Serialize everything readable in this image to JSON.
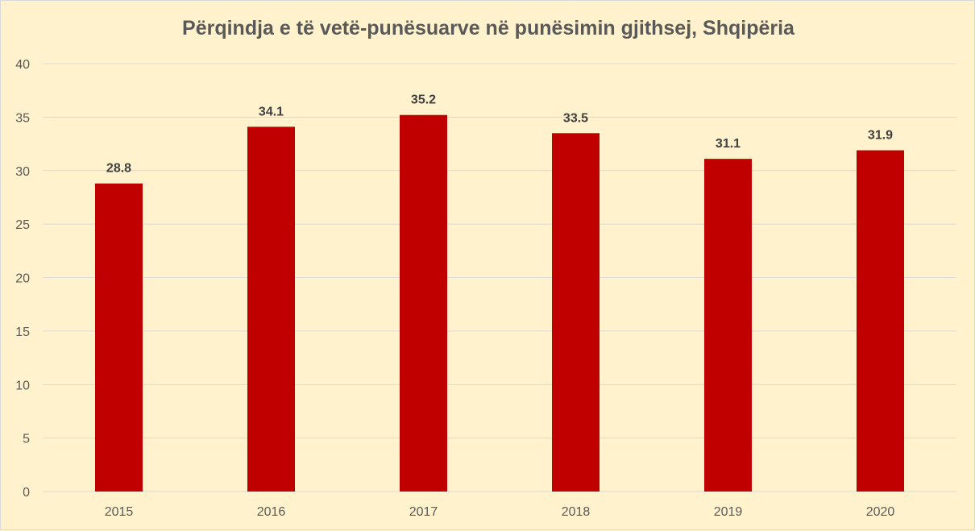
{
  "chart_data": {
    "type": "bar",
    "title": "Përqindja e të vetë-punësuarve në punësimin gjithsej, Shqipëria",
    "xlabel": "",
    "ylabel": "",
    "categories": [
      "2015",
      "2016",
      "2017",
      "2018",
      "2019",
      "2020"
    ],
    "values": [
      28.8,
      34.1,
      35.2,
      33.5,
      31.1,
      31.9
    ],
    "data_labels": [
      "28.8",
      "34.1",
      "35.2",
      "33.5",
      "31.1",
      "31.9"
    ],
    "ylim": [
      0,
      40
    ],
    "yticks": [
      "0",
      "5",
      "10",
      "15",
      "20",
      "25",
      "30",
      "35",
      "40"
    ],
    "grid": true,
    "legend": "none",
    "colors": {
      "bar": "#c00000",
      "background": "#fff2cc",
      "grid": "#d9d9d9"
    }
  }
}
